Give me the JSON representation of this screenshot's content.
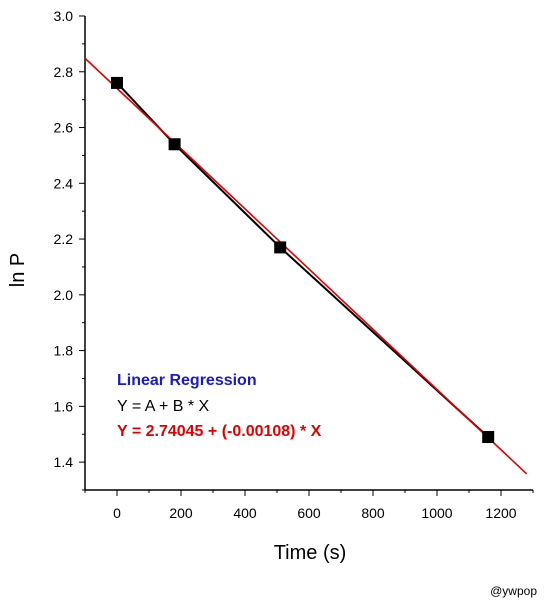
{
  "chart_data": {
    "type": "scatter",
    "title": "",
    "xlabel": "Time (s)",
    "ylabel": "ln P",
    "xlim": [
      -100,
      1300
    ],
    "ylim": [
      1.3,
      3.0
    ],
    "x_ticks": [
      0,
      200,
      400,
      600,
      800,
      1000,
      1200
    ],
    "y_ticks": [
      1.4,
      1.6,
      1.8,
      2.0,
      2.2,
      2.4,
      2.6,
      2.8,
      3.0
    ],
    "x_tick_labels": [
      "0",
      "200",
      "400",
      "600",
      "800",
      "1000",
      "1200"
    ],
    "y_tick_labels": [
      "1.4",
      "1.6",
      "1.8",
      "2.0",
      "2.2",
      "2.4",
      "2.6",
      "2.8",
      "3.0"
    ],
    "grid": false,
    "series": [
      {
        "x": [
          0,
          180,
          510,
          1160
        ],
        "y": [
          2.76,
          2.54,
          2.17,
          1.49
        ],
        "marker": "square",
        "marker_color": "#000000",
        "line_color": "#000000"
      }
    ],
    "fit": {
      "intercept": 2.74045,
      "slope": -0.00108,
      "x_range": [
        -100,
        1280
      ],
      "color": "#e00000"
    },
    "annotations": {
      "heading": "Linear Regression",
      "heading_color": "#1a1acc",
      "model": "Y = A + B * X",
      "model_color": "#000000",
      "equation": "Y = 2.74045 + (-0.00108) * X",
      "equation_color": "#e00000"
    }
  },
  "credit": "@ywpop"
}
